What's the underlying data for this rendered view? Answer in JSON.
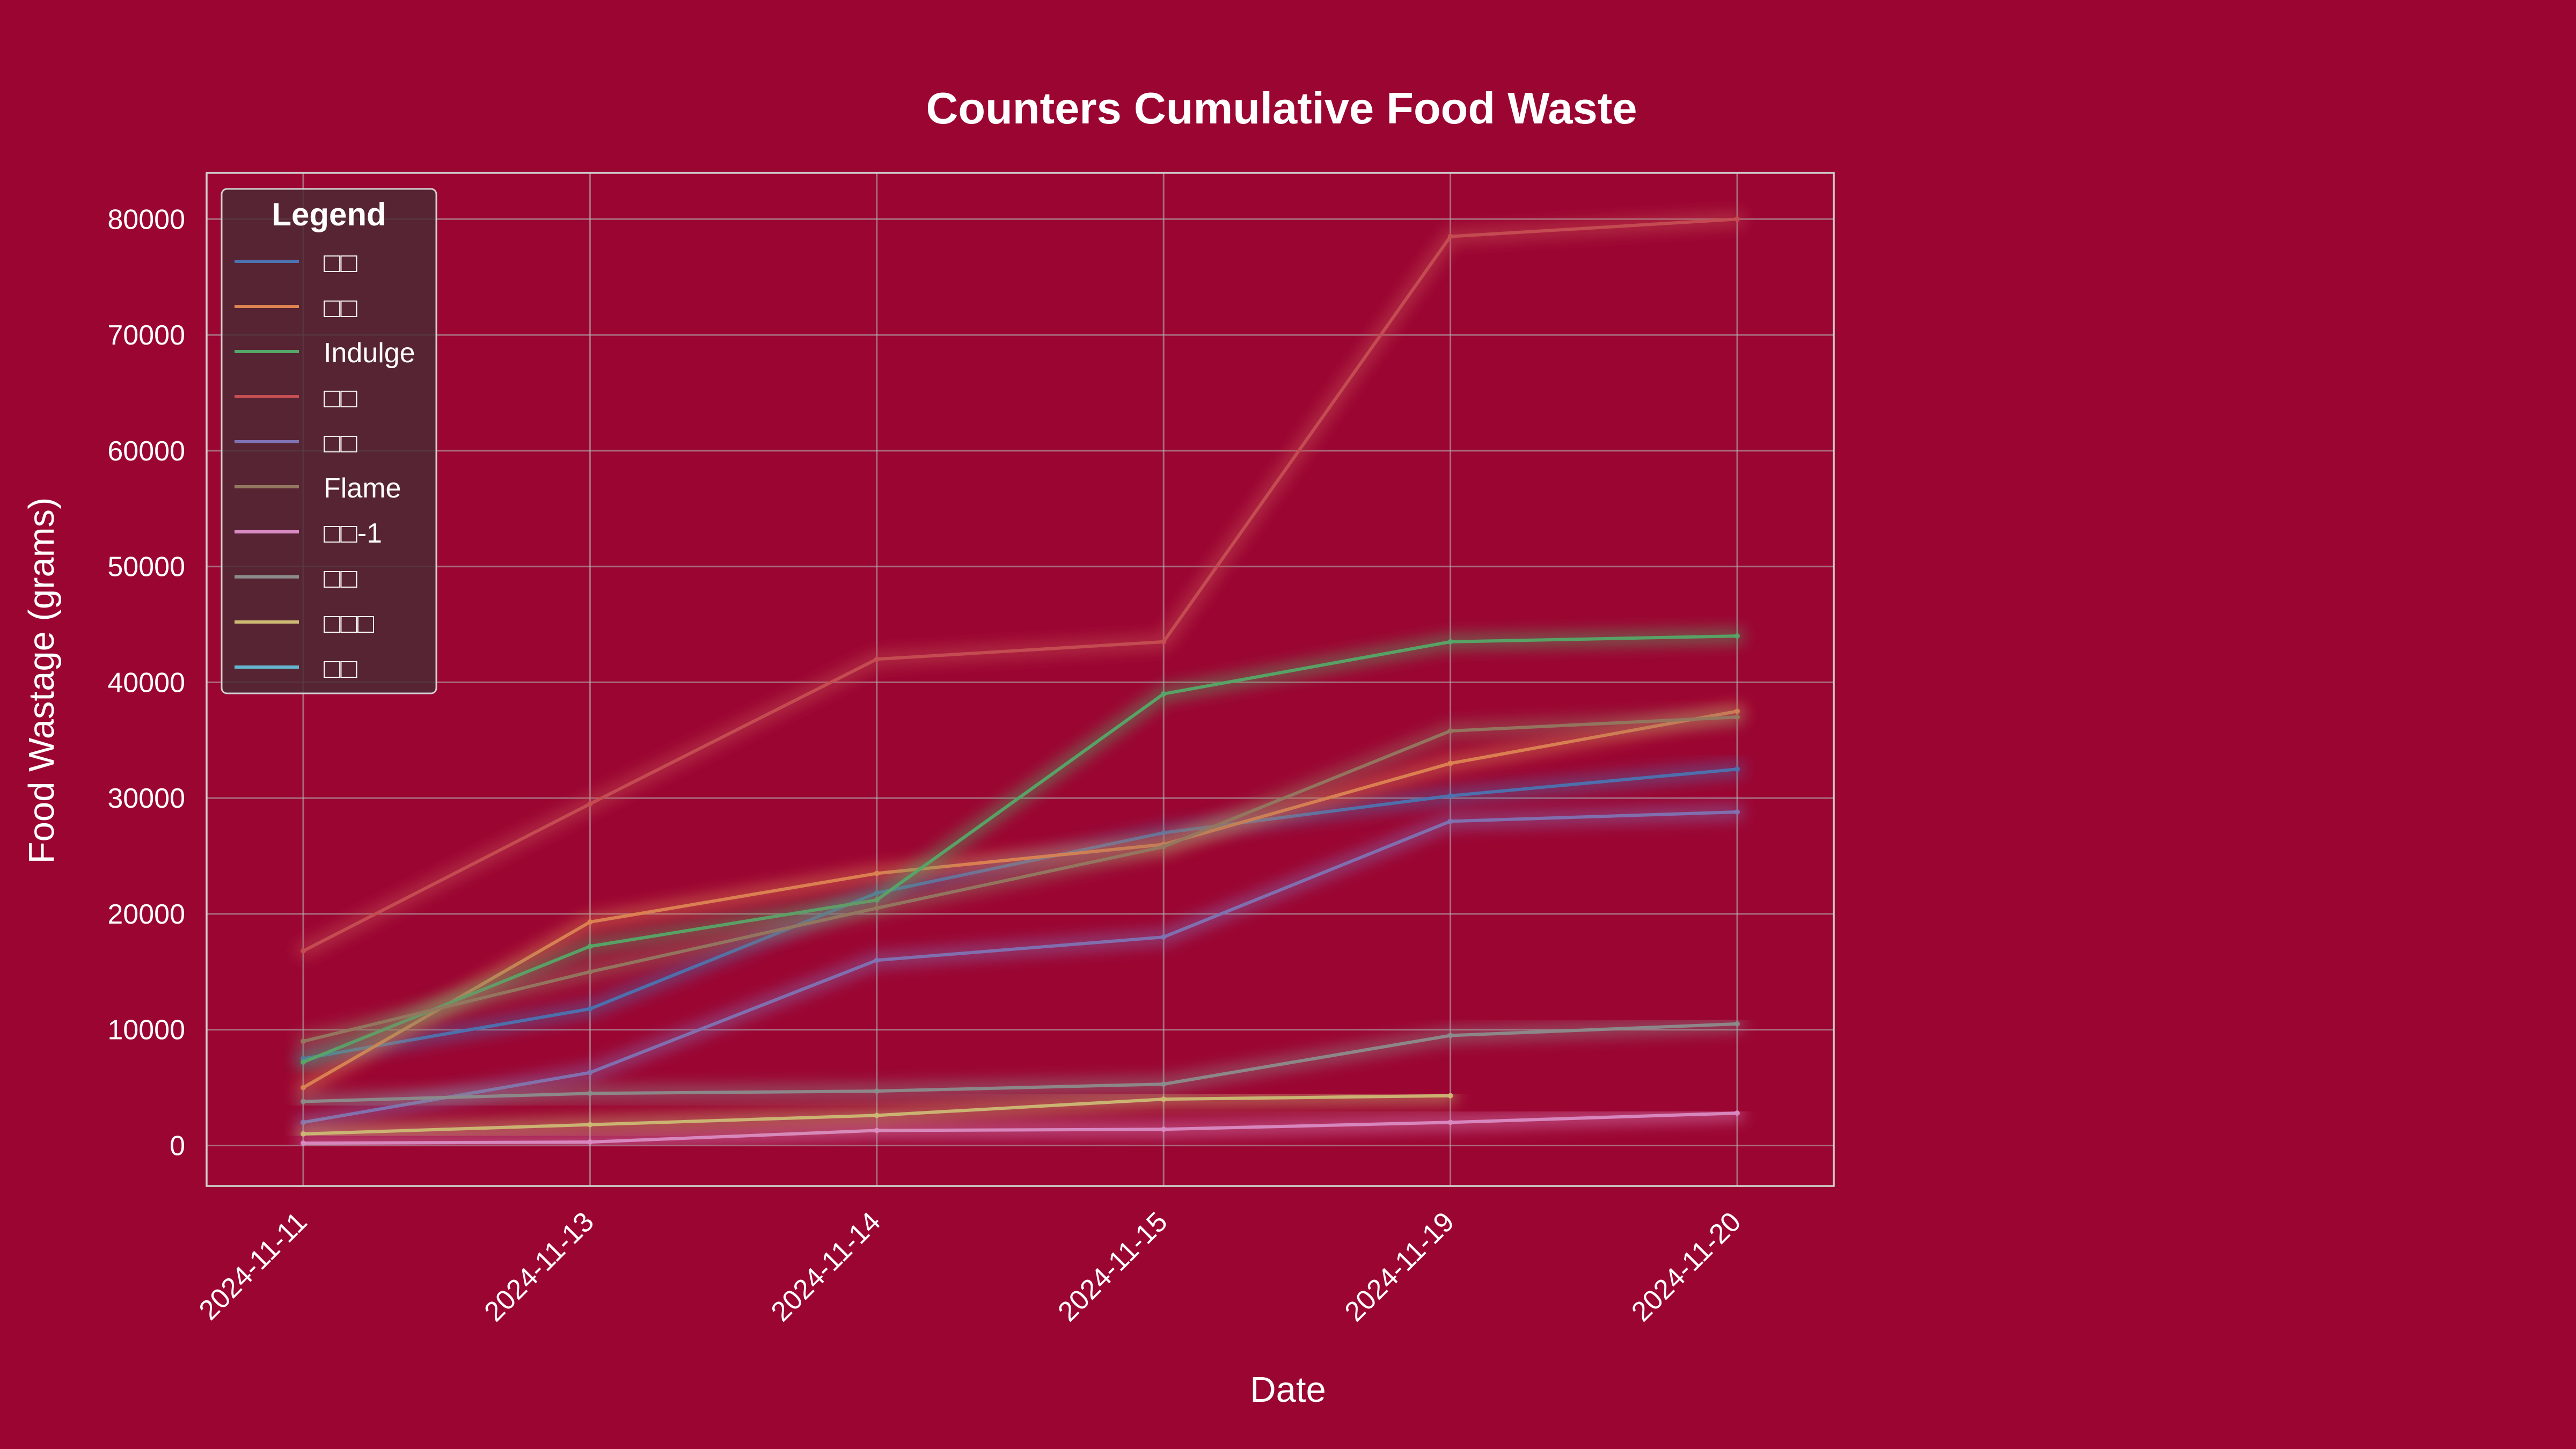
{
  "chart_data": {
    "type": "line",
    "title": "Counters Cumulative Food Waste",
    "xlabel": "Date",
    "ylabel": "Food Wastage (grams)",
    "x": [
      "2024-11-11",
      "2024-11-13",
      "2024-11-14",
      "2024-11-15",
      "2024-11-19",
      "2024-11-20"
    ],
    "ylim": [
      -3500,
      84000
    ],
    "yticks": [
      0,
      10000,
      20000,
      30000,
      40000,
      50000,
      60000,
      70000,
      80000
    ],
    "grid": true,
    "legend": {
      "title": "Legend",
      "placement": "top-left"
    },
    "background_color": "#9b0532",
    "series": [
      {
        "name": "□□",
        "color": "#4c72b0",
        "values": [
          7500,
          11800,
          21800,
          27000,
          30200,
          32500
        ]
      },
      {
        "name": "□□",
        "color": "#dd8452",
        "values": [
          5000,
          19300,
          23500,
          26000,
          33000,
          37500
        ]
      },
      {
        "name": "Indulge",
        "color": "#55a868",
        "values": [
          7200,
          17200,
          21200,
          39000,
          43500,
          44000
        ]
      },
      {
        "name": "□□",
        "color": "#c44e52",
        "values": [
          16800,
          29500,
          42000,
          43500,
          78500,
          80000
        ]
      },
      {
        "name": "□□",
        "color": "#8172b3",
        "values": [
          2000,
          6300,
          16000,
          18000,
          28000,
          28800
        ]
      },
      {
        "name": "Flame",
        "color": "#937860",
        "values": [
          9000,
          15000,
          20500,
          25800,
          35800,
          37000
        ]
      },
      {
        "name": "□□-1",
        "color": "#da8bc3",
        "values": [
          200,
          300,
          1300,
          1400,
          2000,
          2800
        ]
      },
      {
        "name": "□□",
        "color": "#8c8c8c",
        "values": [
          3800,
          4500,
          4700,
          5300,
          9500,
          10500
        ]
      },
      {
        "name": "□□□",
        "color": "#ccb974",
        "values": [
          1000,
          1800,
          2600,
          4000,
          4300,
          null
        ]
      },
      {
        "name": "□□",
        "color": "#64b5cd",
        "values": [
          null,
          null,
          null,
          null,
          null,
          null
        ]
      }
    ]
  }
}
